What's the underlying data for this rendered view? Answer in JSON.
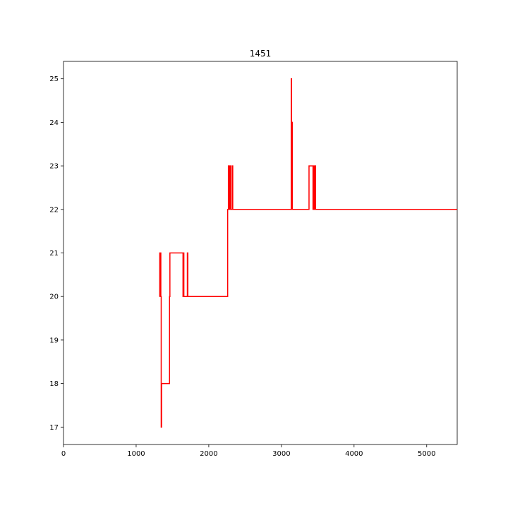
{
  "chart_data": {
    "type": "line",
    "title": "1451",
    "xlabel": "",
    "ylabel": "",
    "xlim": [
      0,
      5420
    ],
    "ylim": [
      16.6,
      25.4
    ],
    "grid": false,
    "legend": "none",
    "line_color": "#ff0000",
    "x_ticks": [
      0,
      1000,
      2000,
      3000,
      4000,
      5000
    ],
    "y_ticks": [
      17,
      18,
      19,
      20,
      21,
      22,
      23,
      24,
      25
    ],
    "series": [
      {
        "step": true,
        "x": [
          1320,
          1325,
          1328,
          1331,
          1334,
          1337,
          1340,
          1345,
          1350,
          1360,
          1460,
          1465,
          1468,
          1640,
          1645,
          1648,
          1651,
          1654,
          1657,
          1660,
          1700,
          1705,
          1712,
          2260,
          2270,
          2275,
          2280,
          2285,
          2290,
          2295,
          2300,
          2305,
          2320,
          2325,
          2330,
          2335,
          3130,
          3135,
          3140,
          3145,
          3150,
          3155,
          3375,
          3380,
          3430,
          3435,
          3440,
          3445,
          3450,
          3460,
          3465,
          3470,
          3475,
          5420
        ],
        "y": [
          20,
          21,
          20,
          21,
          20,
          21,
          20,
          17,
          18,
          18,
          20,
          21,
          21,
          21,
          20,
          21,
          20,
          21,
          20,
          20,
          20,
          21,
          20,
          22,
          23,
          22,
          23,
          22,
          23,
          22,
          23,
          22,
          22,
          23,
          22,
          22,
          22,
          25,
          22,
          24,
          22,
          22,
          22,
          23,
          23,
          22,
          23,
          22,
          23,
          22,
          23,
          22,
          22,
          22
        ]
      }
    ]
  }
}
